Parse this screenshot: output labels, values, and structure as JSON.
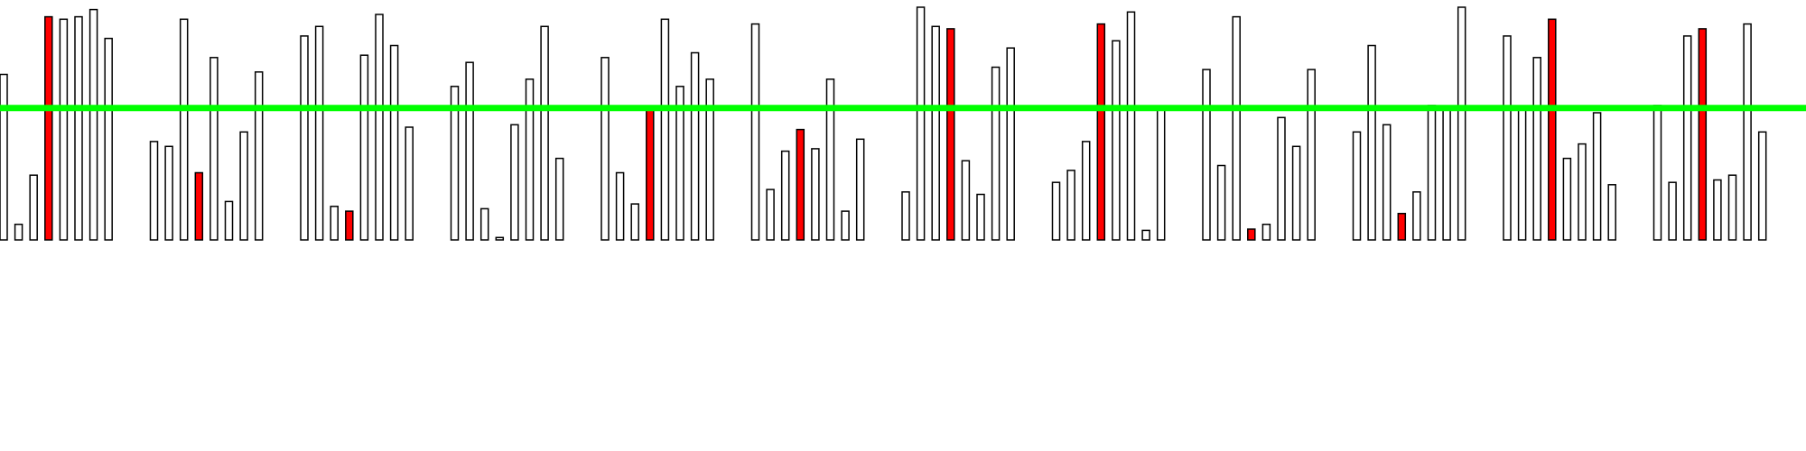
{
  "chart_data": {
    "type": "bar",
    "title": "",
    "xlabel": "",
    "ylabel": "",
    "ylim": [
      0,
      1
    ],
    "grid": false,
    "legend": "none",
    "threshold": {
      "value": 0.5495
    },
    "colors": {
      "bar_fill": "#ffffff",
      "bar_edge": "#000000",
      "highlight_fill": "#ff0000",
      "threshold_line": "#00ff00"
    },
    "groups": [
      {
        "values": [
          0.69,
          0.065,
          0.27,
          0.93,
          0.92,
          0.93,
          0.96,
          0.84
        ],
        "highlight": [
          3
        ]
      },
      {
        "values": [
          0.41,
          0.39,
          0.92,
          0.28,
          0.76,
          0.16,
          0.45,
          0.7
        ],
        "highlight": [
          3
        ]
      },
      {
        "values": [
          0.85,
          0.89,
          0.14,
          0.12,
          0.77,
          0.94,
          0.81,
          0.47
        ],
        "highlight": [
          3
        ]
      },
      {
        "values": [
          0.64,
          0.74,
          0.13,
          0.01,
          0.48,
          0.67,
          0.89,
          0.34
        ],
        "highlight": []
      },
      {
        "values": [
          0.76,
          0.28,
          0.15,
          0.55,
          0.92,
          0.64,
          0.78,
          0.67
        ],
        "highlight": [
          3
        ]
      },
      {
        "values": [
          0.9,
          0.21,
          0.37,
          0.46,
          0.38,
          0.67,
          0.12,
          0.42
        ],
        "highlight": [
          3
        ]
      },
      {
        "values": [
          0.2,
          0.97,
          0.89,
          0.88,
          0.33,
          0.19,
          0.72,
          0.8
        ],
        "highlight": [
          3
        ]
      },
      {
        "values": [
          0.24,
          0.29,
          0.41,
          0.9,
          0.83,
          0.95,
          0.04,
          0.55
        ],
        "highlight": [
          3
        ]
      },
      {
        "values": [
          0.71,
          0.31,
          0.93,
          0.045,
          0.065,
          0.51,
          0.39,
          0.71
        ],
        "highlight": [
          3
        ]
      },
      {
        "values": [
          0.45,
          0.81,
          0.48,
          0.11,
          0.2,
          0.56,
          0.55,
          0.97
        ],
        "highlight": [
          3
        ]
      },
      {
        "values": [
          0.85,
          0.55,
          0.76,
          0.92,
          0.34,
          0.4,
          0.53,
          0.23
        ],
        "highlight": [
          3
        ]
      },
      {
        "values": [
          0.56,
          0.24,
          0.85,
          0.88,
          0.25,
          0.27,
          0.9,
          0.45
        ],
        "highlight": [
          3
        ]
      }
    ]
  }
}
